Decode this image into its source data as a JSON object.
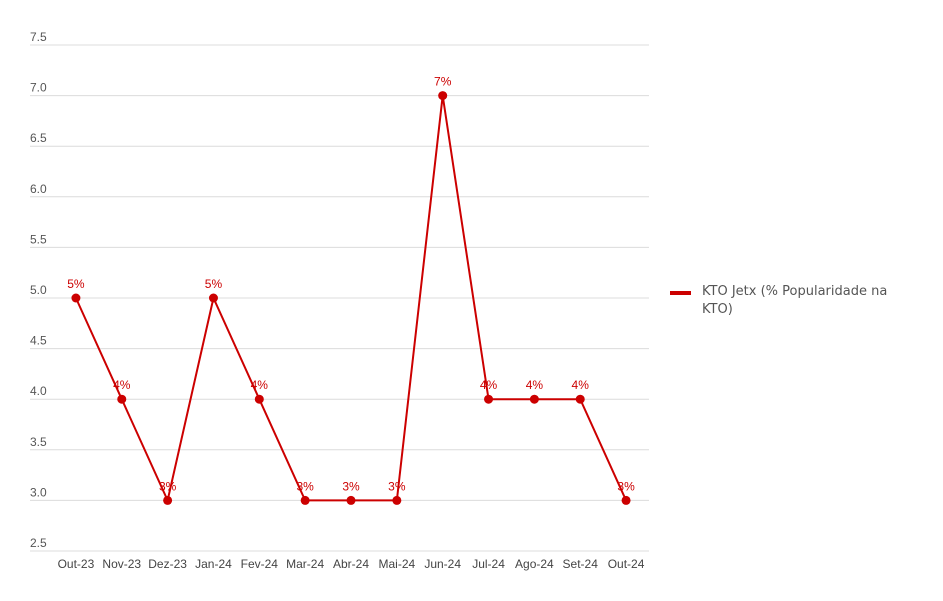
{
  "chart_data": {
    "type": "line",
    "title": "",
    "xlabel": "",
    "ylabel": "",
    "categories": [
      "Out-23",
      "Nov-23",
      "Dez-23",
      "Jan-24",
      "Fev-24",
      "Mar-24",
      "Abr-24",
      "Mai-24",
      "Jun-24",
      "Jul-24",
      "Ago-24",
      "Set-24",
      "Out-24"
    ],
    "series": [
      {
        "name": "KTO Jetx (% Popularidade na KTO)",
        "values": [
          5,
          4,
          3,
          5,
          4,
          3,
          3,
          3,
          7,
          4,
          4,
          4,
          3
        ],
        "data_labels": [
          "5%",
          "4%",
          "3%",
          "5%",
          "4%",
          "3%",
          "3%",
          "3%",
          "7%",
          "4%",
          "4%",
          "4%",
          "3%"
        ],
        "color": "#cc0000"
      }
    ],
    "ylim": [
      2.5,
      7.5
    ],
    "yticks": [
      "2.5",
      "3.0",
      "3.5",
      "4.0",
      "4.5",
      "5.0",
      "5.5",
      "6.0",
      "6.5",
      "7.0",
      "7.5"
    ],
    "grid": true,
    "legend_position": "right"
  }
}
